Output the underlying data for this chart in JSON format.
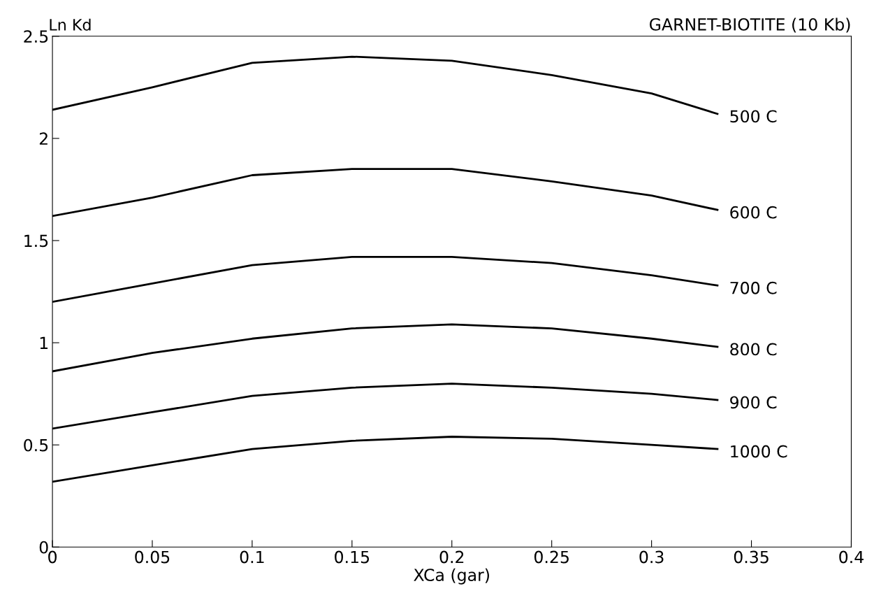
{
  "chart_data": {
    "type": "line",
    "title": "GARNET-BIOTITE (10 Kb)",
    "xlabel": "XCa (gar)",
    "ylabel": "Ln Kd",
    "x": [
      0,
      0.05,
      0.1,
      0.15,
      0.2,
      0.25,
      0.3,
      0.333
    ],
    "series": [
      {
        "name": "500 C",
        "color": "#000000",
        "values": [
          2.14,
          2.25,
          2.37,
          2.4,
          2.38,
          2.31,
          2.22,
          2.12
        ]
      },
      {
        "name": "600 C",
        "color": "#000000",
        "values": [
          1.62,
          1.71,
          1.82,
          1.85,
          1.85,
          1.79,
          1.72,
          1.65
        ]
      },
      {
        "name": "700 C",
        "color": "#000000",
        "values": [
          1.2,
          1.29,
          1.38,
          1.42,
          1.42,
          1.39,
          1.33,
          1.28
        ]
      },
      {
        "name": "800 C",
        "color": "#000000",
        "values": [
          0.86,
          0.95,
          1.02,
          1.07,
          1.09,
          1.07,
          1.02,
          0.98
        ]
      },
      {
        "name": "900 C",
        "color": "#000000",
        "values": [
          0.58,
          0.66,
          0.74,
          0.78,
          0.8,
          0.78,
          0.75,
          0.72
        ]
      },
      {
        "name": "1000 C",
        "color": "#000000",
        "values": [
          0.32,
          0.4,
          0.48,
          0.52,
          0.54,
          0.53,
          0.5,
          0.48
        ]
      }
    ],
    "xlim": [
      0,
      0.4
    ],
    "xticks": [
      0,
      0.05,
      0.1,
      0.15,
      0.2,
      0.25,
      0.3,
      0.35,
      0.4
    ],
    "ylim": [
      0,
      2.5
    ],
    "yticks": [
      0,
      0.5,
      1,
      1.5,
      2,
      2.5
    ],
    "grid": false,
    "legend": false,
    "marker": "none",
    "line_style": "solid"
  }
}
